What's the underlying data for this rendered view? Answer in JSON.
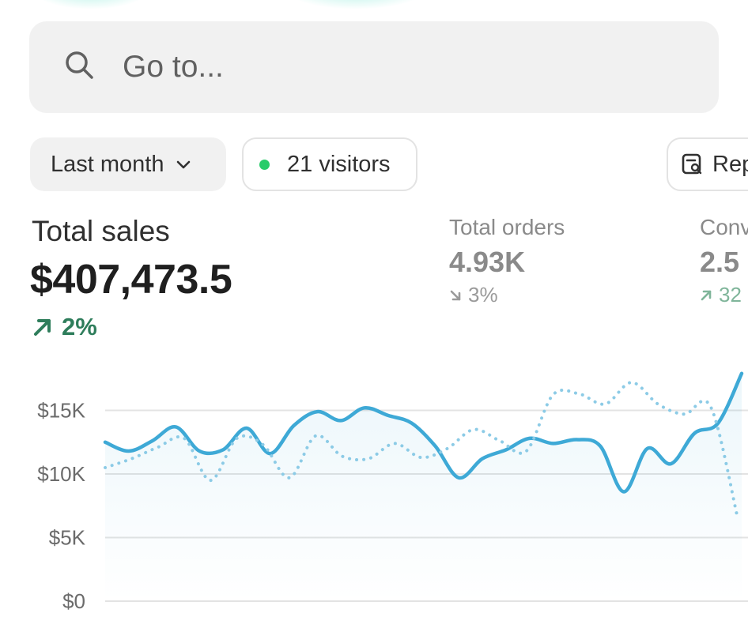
{
  "search": {
    "placeholder": "Go to..."
  },
  "filters": {
    "date_range": "Last month",
    "visitors": "21 visitors",
    "report_button": "Rep"
  },
  "metrics": {
    "total_sales": {
      "label": "Total sales",
      "value": "$407,473.5",
      "change": "2%",
      "direction": "up"
    },
    "total_orders": {
      "label": "Total orders",
      "value": "4.93K",
      "change": "3%",
      "direction": "down"
    },
    "conversion": {
      "label": "Conv",
      "value": "2.5",
      "change": "32",
      "direction": "up"
    }
  },
  "colors": {
    "primary_line": "#3ea9d6",
    "comparison_line": "#8ccbe6",
    "positive": "#2e7d5b",
    "live_dot": "#29cc6a"
  },
  "icons": {
    "search": "search-icon",
    "date_dropdown": "chevron-down-icon",
    "report": "report-icon",
    "trend_up": "arrow-up-right-icon",
    "trend_down": "arrow-down-right-icon"
  },
  "chart_data": {
    "type": "line",
    "y_ticks": [
      "$0",
      "$5K",
      "$10K",
      "$15K"
    ],
    "ylim": [
      0,
      18000
    ],
    "grid": true,
    "series": [
      {
        "style": "solid",
        "values": [
          12500,
          11800,
          12600,
          13700,
          11800,
          11900,
          13600,
          11600,
          13800,
          14900,
          14200,
          15200,
          14600,
          14000,
          12200,
          9700,
          11200,
          11900,
          12800,
          12400,
          12700,
          12200,
          8600,
          12000,
          10800,
          13200,
          14000,
          17900
        ]
      },
      {
        "style": "dotted",
        "values": [
          10500,
          11200,
          12100,
          12800,
          9500,
          12800,
          12300,
          9700,
          13000,
          11400,
          11200,
          12400,
          11300,
          12000,
          13500,
          12600,
          11800,
          16200,
          16300,
          15500,
          17200,
          15500,
          14700,
          15300,
          6800
        ]
      }
    ]
  }
}
